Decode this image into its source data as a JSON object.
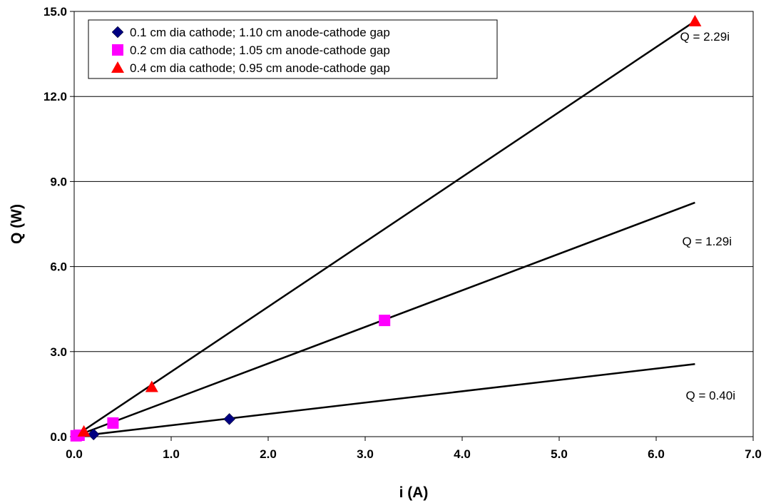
{
  "chart_data": {
    "type": "scatter",
    "xlabel": "i (A)",
    "ylabel": "Q (W)",
    "xlim": [
      0,
      7
    ],
    "ylim": [
      0,
      15
    ],
    "x_ticks": [
      "0.0",
      "1.0",
      "2.0",
      "3.0",
      "4.0",
      "5.0",
      "6.0",
      "7.0"
    ],
    "y_ticks": [
      "0.0",
      "3.0",
      "6.0",
      "9.0",
      "12.0",
      "15.0"
    ],
    "grid": "horizontal",
    "legend_position": "top-left",
    "series": [
      {
        "name": "0.1 cm dia cathode; 1.10 cm anode-cathode gap",
        "marker": "diamond",
        "color": "#000080",
        "x": [
          0.2,
          1.6
        ],
        "y": [
          0.08,
          0.62
        ],
        "fit_label": "Q = 0.40i",
        "fit_slope": 0.4
      },
      {
        "name": "0.2 cm dia cathode; 1.05 cm anode-cathode gap",
        "marker": "square",
        "color": "#ff00ff",
        "x": [
          0.02,
          0.05,
          0.4,
          3.2
        ],
        "y": [
          0.03,
          0.05,
          0.48,
          4.1
        ],
        "fit_label": "Q = 1.29i",
        "fit_slope": 1.29
      },
      {
        "name": "0.4 cm dia cathode; 0.95 cm anode-cathode gap",
        "marker": "triangle",
        "color": "#ff0000",
        "x": [
          0.1,
          0.8,
          6.4
        ],
        "y": [
          0.18,
          1.75,
          14.65
        ],
        "fit_label": "Q = 2.29i",
        "fit_slope": 2.29
      }
    ],
    "fit_x_range": [
      0,
      6.4
    ]
  }
}
